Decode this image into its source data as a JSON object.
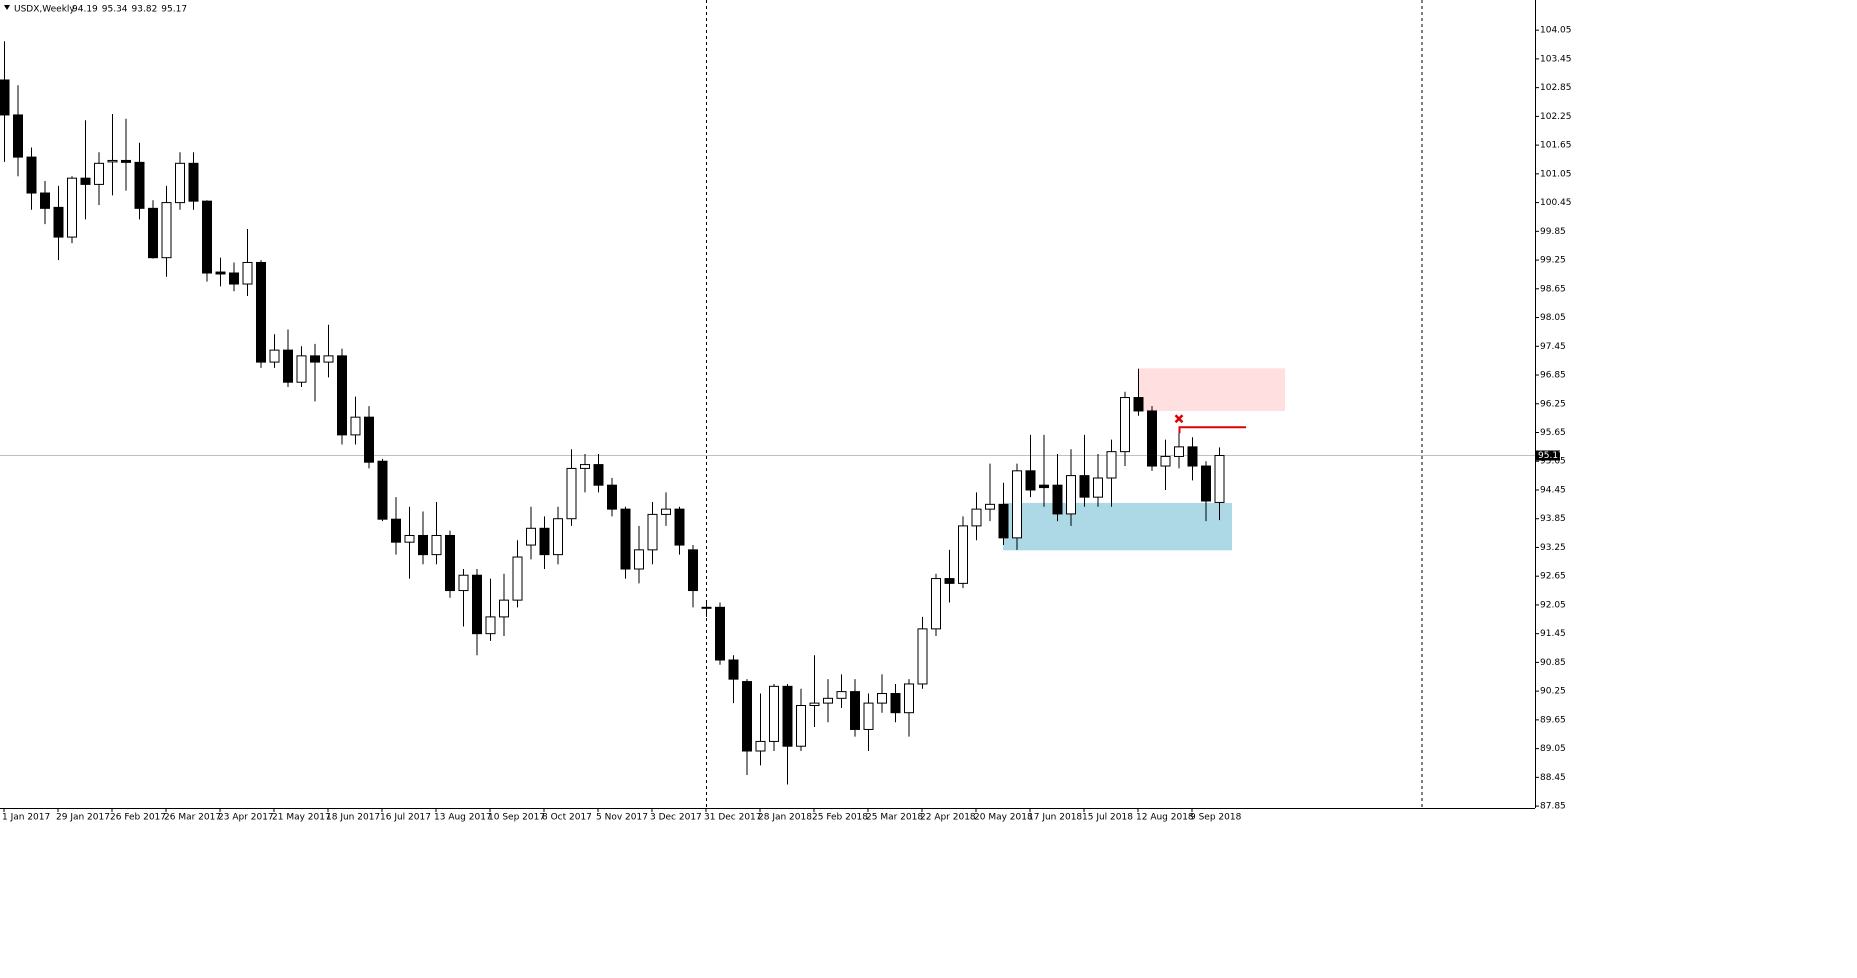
{
  "chart_data": {
    "type": "candlestick",
    "title": "USDX,Weekly",
    "header_values": [
      94.19,
      95.34,
      93.82,
      95.17
    ],
    "last_price": 95.17,
    "categories": [
      "1 Jan 2017",
      null,
      null,
      null,
      "29 Jan 2017",
      null,
      null,
      null,
      "26 Feb 2017",
      null,
      null,
      null,
      "26 Mar 2017",
      null,
      null,
      null,
      "23 Apr 2017",
      null,
      null,
      null,
      "21 May 2017",
      null,
      null,
      null,
      "18 Jun 2017",
      null,
      null,
      null,
      "16 Jul 2017",
      null,
      null,
      null,
      "13 Aug 2017",
      null,
      null,
      null,
      "10 Sep 2017",
      null,
      null,
      null,
      "8 Oct 2017",
      null,
      null,
      null,
      "5 Nov 2017",
      null,
      null,
      null,
      "3 Dec 2017",
      null,
      null,
      null,
      "31 Dec 2017",
      null,
      null,
      null,
      "28 Jan 2018",
      null,
      null,
      null,
      "25 Feb 2018",
      null,
      null,
      null,
      "25 Mar 2018",
      null,
      null,
      null,
      "22 Apr 2018",
      null,
      null,
      null,
      "20 May 2018",
      null,
      null,
      null,
      "17 Jun 2018",
      null,
      null,
      null,
      "15 Jul 2018",
      null,
      null,
      null,
      "12 Aug 2018",
      null,
      null,
      null,
      "9 Sep 2018",
      null,
      null
    ],
    "open": [
      103.01,
      102.28,
      101.4,
      100.65,
      100.35,
      99.73,
      100.96,
      100.83,
      101.3,
      101.33,
      101.29,
      100.33,
      99.3,
      100.45,
      101.27,
      100.48,
      99.0,
      98.98,
      98.75,
      99.2,
      97.12,
      97.37,
      96.7,
      97.25,
      97.12,
      97.25,
      95.6,
      95.97,
      95.05,
      93.84,
      93.36,
      93.5,
      93.1,
      93.5,
      92.35,
      92.67,
      91.45,
      91.8,
      92.15,
      93.3,
      93.65,
      93.1,
      93.85,
      94.9,
      94.98,
      94.55,
      94.05,
      92.8,
      93.2,
      93.94,
      94.05,
      93.2,
      92.0,
      92.0,
      90.9,
      90.45,
      89.0,
      89.2,
      90.35,
      89.1,
      89.95,
      90.0,
      90.1,
      90.24,
      89.45,
      90.0,
      90.2,
      89.8,
      90.4,
      91.55,
      92.6,
      92.5,
      93.7,
      94.05,
      94.15,
      93.45,
      94.85,
      94.55,
      94.55,
      93.95,
      94.75,
      94.3,
      94.7,
      95.25,
      96.38,
      96.1,
      94.95,
      95.15,
      95.35,
      94.95,
      94.19
    ],
    "high": [
      103.82,
      102.9,
      101.6,
      100.9,
      100.8,
      101.0,
      102.17,
      101.5,
      102.3,
      102.2,
      101.7,
      100.5,
      100.8,
      101.5,
      101.5,
      100.5,
      99.3,
      99.2,
      99.9,
      99.25,
      97.7,
      97.8,
      97.45,
      97.5,
      97.9,
      97.4,
      96.4,
      96.2,
      95.1,
      94.3,
      94.1,
      94.0,
      94.2,
      93.6,
      92.8,
      92.8,
      92.6,
      92.7,
      93.4,
      94.1,
      93.9,
      94.1,
      95.3,
      95.2,
      95.2,
      94.7,
      94.1,
      93.7,
      94.2,
      94.4,
      94.1,
      93.3,
      92.1,
      92.1,
      91.0,
      90.5,
      90.2,
      90.4,
      90.4,
      90.3,
      91.0,
      90.5,
      90.6,
      90.5,
      90.2,
      90.6,
      90.4,
      90.5,
      91.8,
      92.7,
      93.2,
      93.9,
      94.4,
      95.0,
      94.6,
      95.0,
      95.6,
      95.6,
      95.2,
      95.3,
      95.6,
      95.2,
      95.5,
      96.5,
      96.98,
      96.2,
      95.5,
      95.65,
      95.55,
      95.05,
      95.34
    ],
    "low": [
      101.3,
      101.0,
      100.3,
      100.0,
      99.25,
      99.6,
      100.1,
      100.4,
      100.6,
      100.7,
      100.1,
      99.28,
      98.9,
      100.3,
      100.3,
      98.8,
      98.7,
      98.6,
      98.5,
      97.0,
      97.0,
      96.6,
      96.6,
      96.3,
      96.8,
      95.4,
      95.4,
      94.9,
      93.8,
      93.1,
      92.6,
      92.9,
      92.9,
      92.2,
      91.6,
      91.0,
      91.3,
      91.4,
      92.0,
      93.0,
      92.8,
      92.9,
      93.7,
      94.4,
      94.4,
      93.9,
      92.6,
      92.5,
      92.9,
      93.7,
      93.1,
      92.0,
      91.8,
      90.8,
      90.0,
      88.5,
      88.7,
      89.0,
      88.3,
      89.0,
      89.5,
      89.6,
      89.9,
      89.3,
      89.0,
      89.8,
      89.6,
      89.3,
      90.3,
      91.4,
      92.1,
      92.4,
      93.4,
      93.8,
      93.3,
      93.2,
      94.3,
      94.1,
      93.8,
      93.7,
      94.1,
      94.1,
      94.1,
      94.95,
      96.0,
      94.85,
      94.45,
      94.9,
      94.65,
      93.8,
      93.82
    ],
    "close": [
      102.28,
      101.4,
      100.65,
      100.33,
      99.73,
      100.96,
      100.83,
      101.27,
      101.33,
      101.29,
      100.33,
      99.3,
      100.45,
      101.27,
      100.48,
      98.98,
      98.96,
      98.75,
      99.2,
      97.12,
      97.37,
      96.7,
      97.25,
      97.12,
      97.25,
      95.6,
      95.97,
      95.03,
      93.84,
      93.36,
      93.5,
      93.1,
      93.5,
      92.35,
      92.67,
      91.45,
      91.8,
      92.15,
      93.05,
      93.65,
      93.1,
      93.85,
      94.9,
      94.98,
      94.55,
      94.05,
      92.8,
      93.2,
      93.94,
      94.05,
      93.3,
      92.35,
      91.98,
      90.9,
      90.5,
      89.0,
      89.2,
      90.35,
      89.1,
      89.95,
      90.0,
      90.1,
      90.24,
      89.45,
      90.0,
      90.2,
      89.8,
      90.4,
      91.55,
      92.6,
      92.5,
      93.7,
      94.05,
      94.15,
      93.45,
      94.85,
      94.45,
      94.5,
      93.95,
      94.75,
      94.3,
      94.7,
      95.25,
      96.38,
      96.1,
      94.95,
      95.15,
      95.35,
      94.95,
      94.22,
      95.17
    ],
    "up_color": "#ffffff",
    "down_color": "#000000",
    "zones": [
      {
        "low": 96.1,
        "high": 96.99,
        "color": "#ffdfdf"
      },
      {
        "low": 93.19,
        "high": 94.18,
        "color": "#add8e6"
      }
    ],
    "level": {
      "value": 95.76,
      "color": "#e00000"
    },
    "ylim": [
      87.81,
      104.68
    ],
    "yticks": [
      104.05,
      103.45,
      102.85,
      102.25,
      101.65,
      101.05,
      100.45,
      99.85,
      99.25,
      98.65,
      98.05,
      97.45,
      96.85,
      96.25,
      95.65,
      95.05,
      94.45,
      93.85,
      93.25,
      92.65,
      92.05,
      91.45,
      90.85,
      90.25,
      89.65,
      89.05,
      88.45,
      87.85
    ]
  }
}
